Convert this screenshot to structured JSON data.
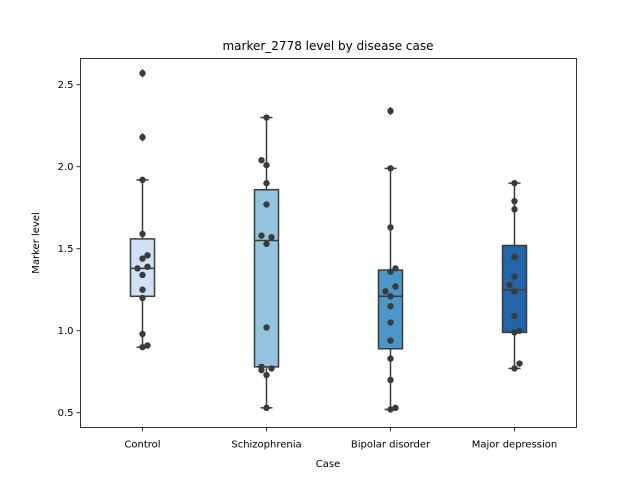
{
  "chart_data": {
    "type": "box",
    "title": "marker_2778 level by disease case",
    "xlabel": "Case",
    "ylabel": "Marker level",
    "ylim": [
      0.41,
      2.66
    ],
    "yticks": [
      "0.5",
      "1.0",
      "1.5",
      "2.0",
      "2.5"
    ],
    "grid": false,
    "categories": [
      "Control",
      "Schizophrenia",
      "Bipolar disorder",
      "Major depression"
    ],
    "box_colors": [
      "#cfe1f2",
      "#93c4de",
      "#4a98c9",
      "#2265a8"
    ],
    "boxes": [
      {
        "q1": 1.21,
        "median": 1.38,
        "q3": 1.56,
        "whisker_low": 0.9,
        "whisker_high": 1.92,
        "outliers": [
          2.18,
          2.57
        ]
      },
      {
        "q1": 0.78,
        "median": 1.55,
        "q3": 1.86,
        "whisker_low": 0.53,
        "whisker_high": 2.3,
        "outliers": []
      },
      {
        "q1": 0.89,
        "median": 1.21,
        "q3": 1.37,
        "whisker_low": 0.52,
        "whisker_high": 1.99,
        "outliers": [
          2.34
        ]
      },
      {
        "q1": 0.99,
        "median": 1.25,
        "q3": 1.52,
        "whisker_low": 0.77,
        "whisker_high": 1.9,
        "outliers": []
      }
    ],
    "points": [
      {
        "category": 0,
        "values": [
          0.91,
          0.9,
          0.98,
          1.2,
          1.25,
          1.34,
          1.38,
          1.39,
          1.44,
          1.46,
          1.59,
          1.92,
          2.18,
          2.57
        ]
      },
      {
        "category": 1,
        "values": [
          0.53,
          0.73,
          0.76,
          0.77,
          0.78,
          1.02,
          1.53,
          1.57,
          1.58,
          1.77,
          1.9,
          2.01,
          2.04,
          2.3
        ]
      },
      {
        "category": 2,
        "values": [
          0.52,
          0.53,
          0.7,
          0.83,
          0.94,
          1.05,
          1.15,
          1.21,
          1.24,
          1.27,
          1.36,
          1.38,
          1.63,
          1.99,
          2.34
        ]
      },
      {
        "category": 3,
        "values": [
          0.77,
          0.8,
          0.99,
          1.0,
          1.09,
          1.24,
          1.28,
          1.33,
          1.45,
          1.74,
          1.79,
          1.9
        ]
      }
    ]
  }
}
